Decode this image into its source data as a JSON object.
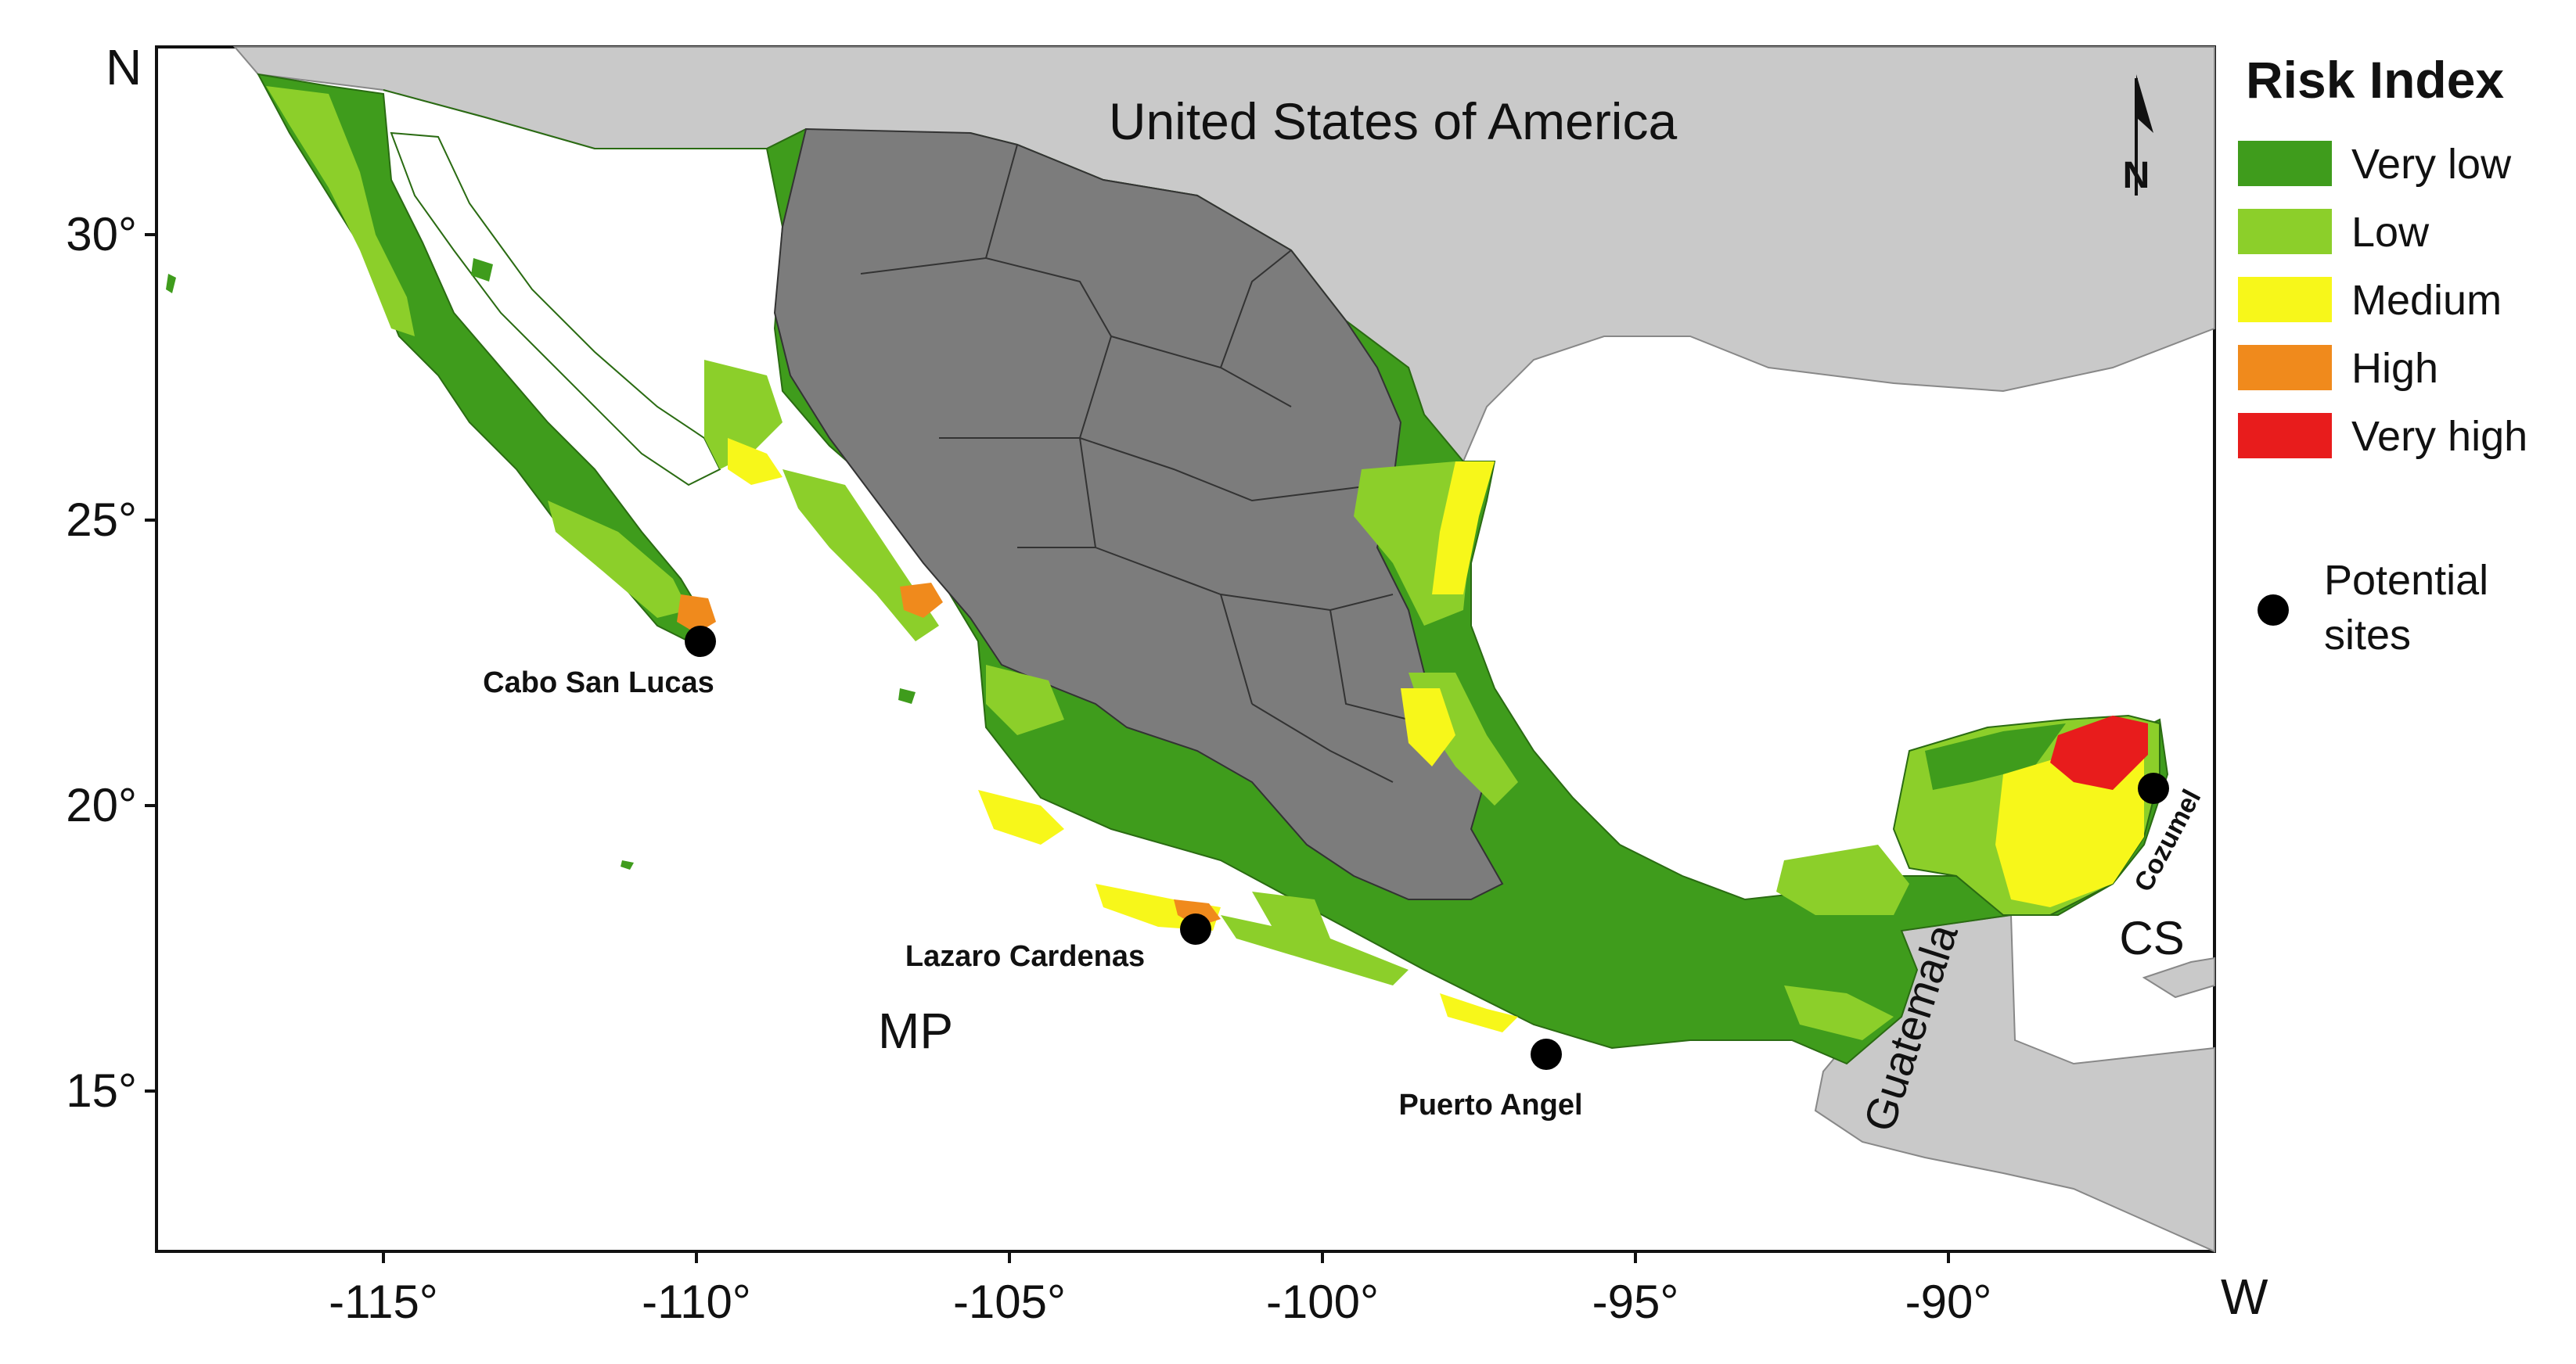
{
  "map": {
    "country_labels": {
      "usa": "United States of America",
      "guatemala": "Guatemala"
    },
    "region_labels": {
      "mp": "MP",
      "cs": "CS"
    },
    "corner_labels": {
      "north": "N",
      "west": "W"
    },
    "north_arrow_label": "N",
    "x_ticks": [
      "-115°",
      "-110°",
      "-105°",
      "-100°",
      "-95°",
      "-90°"
    ],
    "y_ticks": [
      "30°",
      "25°",
      "20°",
      "15°"
    ],
    "legend": {
      "title": "Risk Index",
      "items": [
        {
          "label": "Very low",
          "color": "#3f9c1c"
        },
        {
          "label": "Low",
          "color": "#8ccf2a"
        },
        {
          "label": "Medium",
          "color": "#f7f71a"
        },
        {
          "label": "High",
          "color": "#f08a1c"
        },
        {
          "label": "Very high",
          "color": "#e81c1c"
        }
      ],
      "sites_label": "Potential\nsites"
    },
    "sites": [
      {
        "name": "Cabo San Lucas",
        "lon": -109.9,
        "lat": 22.9
      },
      {
        "name": "Lazaro Cardenas",
        "lon": -102.2,
        "lat": 17.9
      },
      {
        "name": "Puerto Angel",
        "lon": -96.5,
        "lat": 15.7
      },
      {
        "name": "Cozumel",
        "lon": -86.9,
        "lat": 20.4
      }
    ],
    "colors": {
      "neighbor_gray": "#c9c9c9",
      "interior_gray": "#7c7c7c",
      "very_low": "#3f9c1c",
      "low": "#8ccf2a",
      "medium": "#f7f71a",
      "high": "#f08a1c",
      "very_high": "#e81c1c"
    }
  }
}
